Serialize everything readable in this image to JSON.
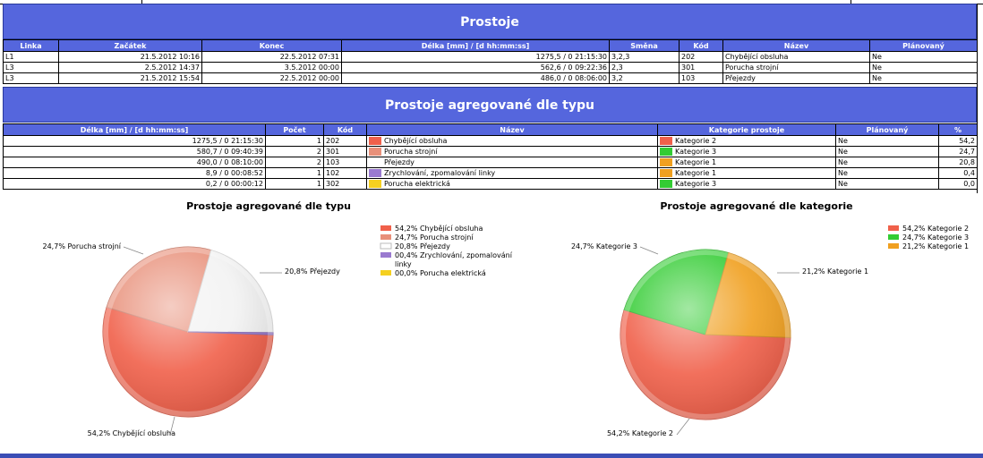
{
  "section1": {
    "title": "Prostoje",
    "headers": [
      "Linka",
      "Začátek",
      "Konec",
      "Délka [mm] / [d hh:mm:ss]",
      "Směna",
      "Kód",
      "Název",
      "Plánovaný"
    ],
    "rows": [
      [
        "L1",
        "21.5.2012 10:16",
        "22.5.2012 07:31",
        "1275,5 / 0 21:15:30",
        "3,2,3",
        "202",
        "Chybějící obsluha",
        "Ne"
      ],
      [
        "L3",
        "2.5.2012 14:37",
        "3.5.2012 00:00",
        "562,6 / 0 09:22:36",
        "2,3",
        "301",
        "Porucha strojní",
        "Ne"
      ],
      [
        "L3",
        "21.5.2012 15:54",
        "22.5.2012 00:00",
        "486,0 / 0 08:06:00",
        "3,2",
        "103",
        "Přejezdy",
        "Ne"
      ]
    ]
  },
  "section2": {
    "title": "Prostoje agregované dle typu",
    "headers": [
      "Délka [mm] / [d hh:mm:ss]",
      "Počet",
      "Kód",
      "Název",
      "Kategorie prostoje",
      "Plánovaný",
      "%"
    ],
    "rows": [
      {
        "delka": "1275,5 / 0 21:15:30",
        "pocet": "1",
        "kod": "202",
        "nazev": "Chybějící obsluha",
        "nazev_color": "#f0604a",
        "kategorie": "Kategorie 2",
        "kat_color": "#f0604a",
        "planovany": "Ne",
        "pct": "54,2"
      },
      {
        "delka": "580,7 / 0 09:40:39",
        "pocet": "2",
        "kod": "301",
        "nazev": "Porucha strojní",
        "nazev_color": "#e8907a",
        "kategorie": "Kategorie 3",
        "kat_color": "#33cc33",
        "planovany": "Ne",
        "pct": "24,7"
      },
      {
        "delka": "490,0 / 0 08:10:00",
        "pocet": "2",
        "kod": "103",
        "nazev": "Přejezdy",
        "nazev_color": "#ffffff",
        "kategorie": "Kategorie 1",
        "kat_color": "#f0a020",
        "planovany": "Ne",
        "pct": "20,8"
      },
      {
        "delka": "8,9 / 0 00:08:52",
        "pocet": "1",
        "kod": "102",
        "nazev": "Zrychlování, zpomalování linky",
        "nazev_color": "#9a7ad0",
        "kategorie": "Kategorie 1",
        "kat_color": "#f0a020",
        "planovany": "Ne",
        "pct": "0,4"
      },
      {
        "delka": "0,2 / 0 00:00:12",
        "pocet": "1",
        "kod": "302",
        "nazev": "Porucha elektrická",
        "nazev_color": "#f5d020",
        "kategorie": "Kategorie 3",
        "kat_color": "#33cc33",
        "planovany": "Ne",
        "pct": "0,0"
      }
    ]
  },
  "chart_data": [
    {
      "type": "pie",
      "title": "Prostoje agregované dle typu",
      "slices": [
        {
          "name": "Chybějící obsluha",
          "value": 54.2,
          "color": "#f0604a",
          "legend": "54,2% Chybějící obsluha",
          "label": "54,2% Chybějící obsluha"
        },
        {
          "name": "Porucha strojní",
          "value": 24.7,
          "color": "#e8907a",
          "legend": "24,7% Porucha strojní",
          "label": "24,7% Porucha strojní"
        },
        {
          "name": "Přejezdy",
          "value": 20.8,
          "color": "#ffffff",
          "legend": "20,8% Přejezdy",
          "label": "20,8% Přejezdy"
        },
        {
          "name": "Zrychlování, zpomalování linky",
          "value": 0.4,
          "color": "#9a7ad0",
          "legend": "00,4% Zrychlování, zpomalování linky",
          "label": ""
        },
        {
          "name": "Porucha elektrická",
          "value": 0.0,
          "color": "#f5d020",
          "legend": "00,0% Porucha elektrická",
          "label": ""
        }
      ],
      "legend_position": "top-right"
    },
    {
      "type": "pie",
      "title": "Prostoje agregované dle kategorie",
      "slices": [
        {
          "name": "Kategorie 2",
          "value": 54.2,
          "color": "#f0604a",
          "legend": "54,2% Kategorie 2",
          "label": "54,2% Kategorie 2"
        },
        {
          "name": "Kategorie 3",
          "value": 24.7,
          "color": "#33cc33",
          "legend": "24,7% Kategorie 3",
          "label": "24,7% Kategorie 3"
        },
        {
          "name": "Kategorie 1",
          "value": 21.2,
          "color": "#f0a020",
          "legend": "21,2% Kategorie 1",
          "label": "21,2% Kategorie 1"
        }
      ],
      "legend_position": "top-right"
    }
  ]
}
